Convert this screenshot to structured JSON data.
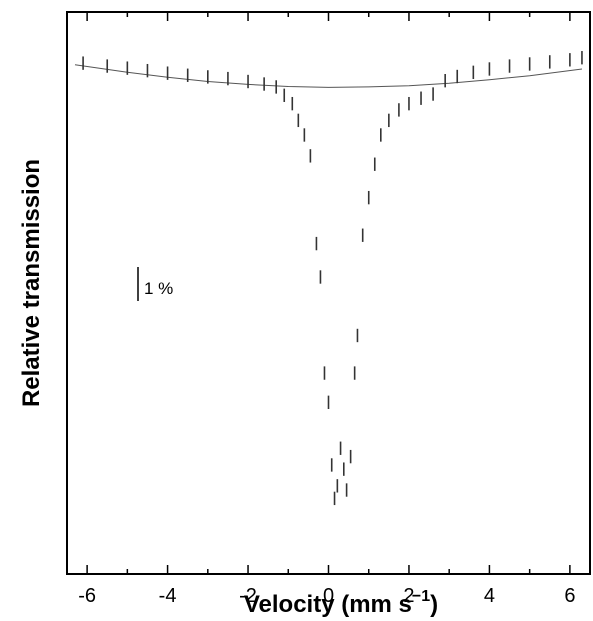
{
  "chart_data": {
    "type": "scatter",
    "xlabel": "Velocity (mm s",
    "xlabel_superscript": "−1",
    "xlabel_close": ")",
    "ylabel": "Relative transmission",
    "xlim": [
      -6.5,
      6.5
    ],
    "x_ticks": [
      -6,
      -4,
      -2,
      0,
      2,
      4,
      6
    ],
    "x_tick_labels": [
      "-6",
      "-4",
      "-2",
      "0",
      "2",
      "4",
      "6"
    ],
    "y_unit": "percent depth below baseline",
    "ylim_depth": [
      10.75,
      -0.55
    ],
    "y_ticks": "unlabeled",
    "scale_bar": {
      "label": "1 %",
      "value": 1.0
    },
    "grid": false,
    "series": [
      {
        "kind": "data-with-errorbars",
        "error_bar_half_height": 0.16,
        "points": [
          [
            -6.1,
            -0.02
          ],
          [
            -5.5,
            0.05
          ],
          [
            -5.0,
            0.1
          ],
          [
            -4.5,
            0.16
          ],
          [
            -4.0,
            0.22
          ],
          [
            -3.5,
            0.27
          ],
          [
            -3.0,
            0.31
          ],
          [
            -2.5,
            0.35
          ],
          [
            -2.0,
            0.42
          ],
          [
            -1.6,
            0.48
          ],
          [
            -1.3,
            0.55
          ],
          [
            -1.1,
            0.75
          ],
          [
            -0.9,
            0.95
          ],
          [
            -0.75,
            1.35
          ],
          [
            -0.6,
            1.7
          ],
          [
            -0.45,
            2.2
          ],
          [
            -0.3,
            4.3
          ],
          [
            -0.2,
            5.1
          ],
          [
            -0.1,
            7.4
          ],
          [
            0.0,
            8.1
          ],
          [
            0.08,
            9.6
          ],
          [
            0.15,
            10.4
          ],
          [
            0.22,
            10.1
          ],
          [
            0.3,
            9.2
          ],
          [
            0.38,
            9.7
          ],
          [
            0.45,
            10.2
          ],
          [
            0.55,
            9.4
          ],
          [
            0.65,
            7.4
          ],
          [
            0.72,
            6.5
          ],
          [
            0.85,
            4.1
          ],
          [
            1.0,
            3.2
          ],
          [
            1.15,
            2.4
          ],
          [
            1.3,
            1.7
          ],
          [
            1.5,
            1.35
          ],
          [
            1.75,
            1.1
          ],
          [
            2.0,
            0.95
          ],
          [
            2.3,
            0.82
          ],
          [
            2.6,
            0.72
          ],
          [
            2.9,
            0.4
          ],
          [
            3.2,
            0.3
          ],
          [
            3.6,
            0.2
          ],
          [
            4.0,
            0.12
          ],
          [
            4.5,
            0.05
          ],
          [
            5.0,
            0.0
          ],
          [
            5.5,
            -0.05
          ],
          [
            6.0,
            -0.1
          ],
          [
            6.3,
            -0.15
          ]
        ]
      },
      {
        "kind": "baseline-fit",
        "points": [
          [
            -6.3,
            0.02
          ],
          [
            -5.0,
            0.2
          ],
          [
            -4.0,
            0.32
          ],
          [
            -3.0,
            0.42
          ],
          [
            -2.0,
            0.49
          ],
          [
            -1.0,
            0.54
          ],
          [
            0.0,
            0.56
          ],
          [
            1.0,
            0.55
          ],
          [
            2.0,
            0.52
          ],
          [
            3.0,
            0.46
          ],
          [
            4.0,
            0.38
          ],
          [
            5.0,
            0.28
          ],
          [
            6.3,
            0.12
          ]
        ]
      }
    ]
  }
}
